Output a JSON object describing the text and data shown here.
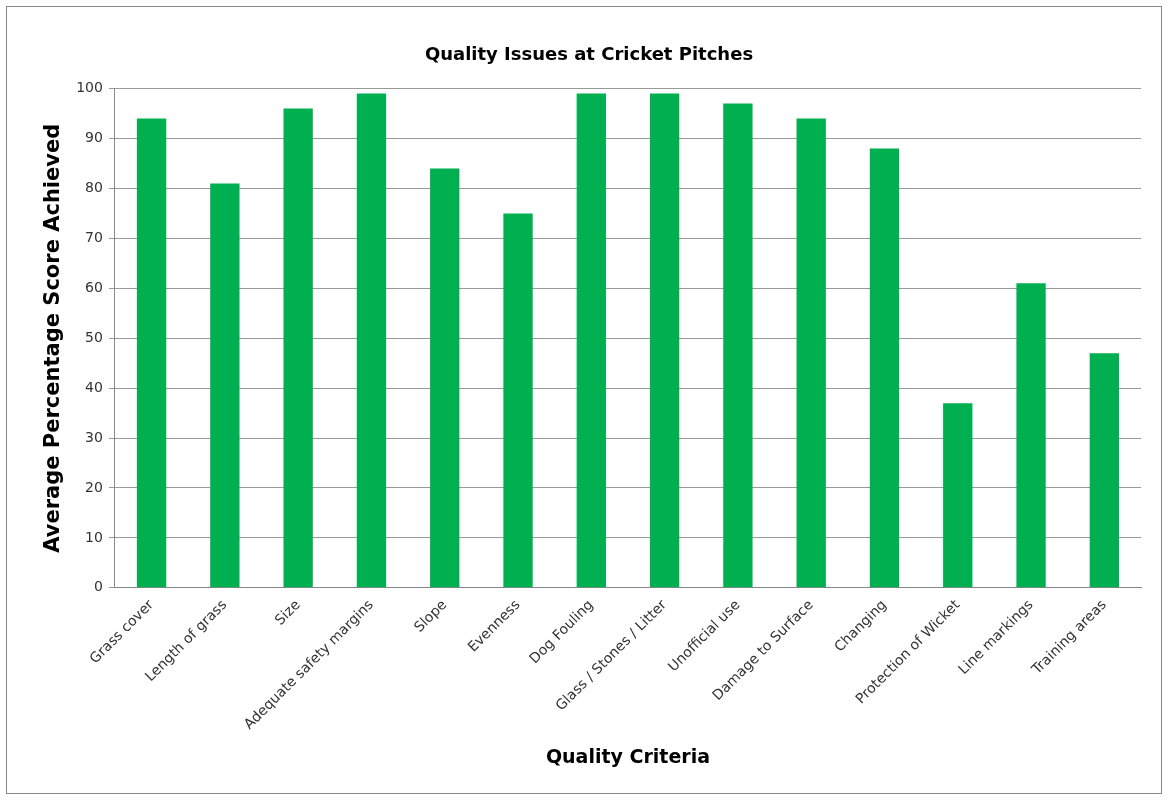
{
  "chart_data": {
    "type": "bar",
    "title": "Quality Issues at Cricket Pitches",
    "xlabel": "Quality Criteria",
    "ylabel": "Average Percentage Score Achieved",
    "categories": [
      "Grass cover",
      "Length of grass",
      "Size",
      "Adequate safety margins",
      "Slope",
      "Evenness",
      "Dog Fouling",
      "Glass / Stones / Litter",
      "Unofficial use",
      "Damage to Surface",
      "Changing",
      "Protection of Wicket",
      "Line markings",
      "Training areas"
    ],
    "values": [
      94,
      81,
      96,
      99,
      84,
      75,
      99,
      99,
      97,
      94,
      88,
      37,
      61,
      47
    ],
    "color": "#00b050",
    "ylim": [
      0,
      100
    ],
    "yticks": [
      0,
      10,
      20,
      30,
      40,
      50,
      60,
      70,
      80,
      90,
      100
    ],
    "grid": "y",
    "legend": false
  }
}
